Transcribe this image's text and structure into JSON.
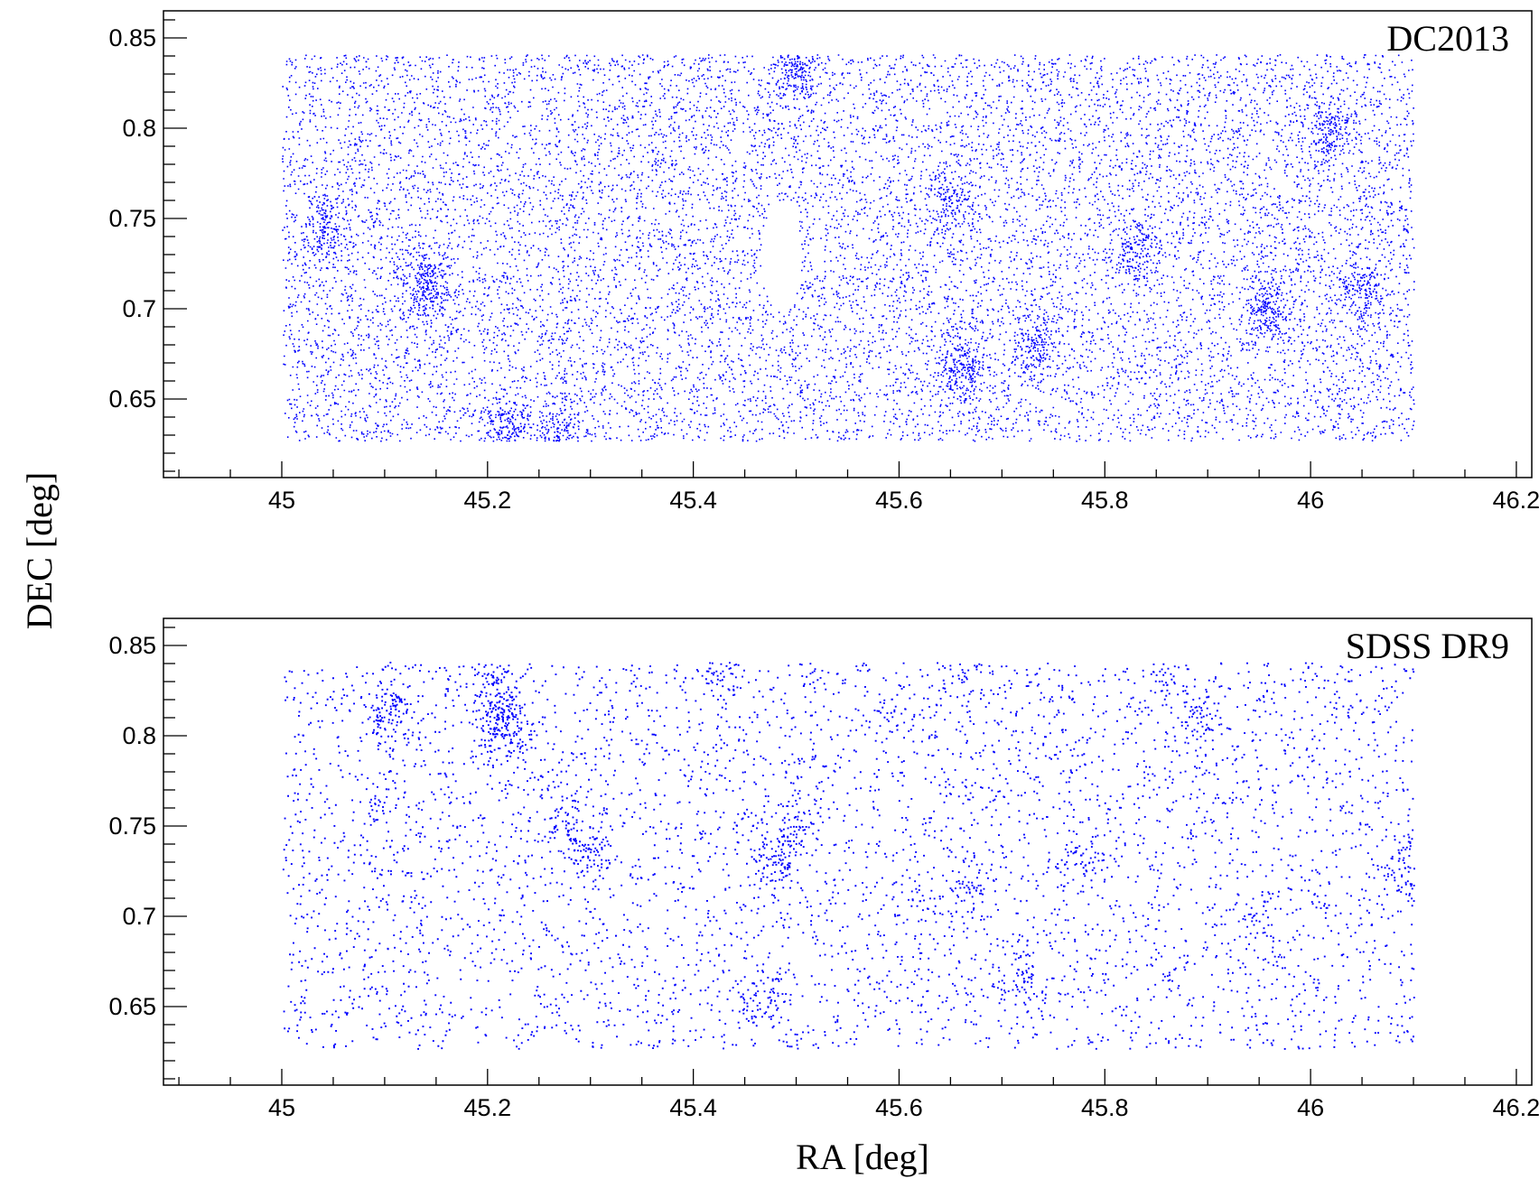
{
  "chart_data": [
    {
      "type": "scatter",
      "title": "DC2013",
      "xlabel": "RA [deg]",
      "ylabel": "DEC [deg]",
      "xlim": [
        44.885,
        46.215
      ],
      "ylim": [
        0.6065,
        0.865
      ],
      "x_ticks": [
        "45",
        "45.2",
        "45.4",
        "45.6",
        "45.8",
        "46",
        "46.2"
      ],
      "y_ticks": [
        "0.65",
        "0.7",
        "0.75",
        "0.8",
        "0.85"
      ],
      "footprint": {
        "ra": [
          45.0,
          46.1
        ],
        "dec": [
          0.627,
          0.841
        ]
      },
      "point_color": "#0000ff",
      "point_count": 14000,
      "density": "dense",
      "clusters": [
        {
          "ra": 45.14,
          "dec": 0.714,
          "weight": 60
        },
        {
          "ra": 45.04,
          "dec": 0.745,
          "weight": 40
        },
        {
          "ra": 45.22,
          "dec": 0.632,
          "weight": 50
        },
        {
          "ra": 45.5,
          "dec": 0.836,
          "weight": 60
        },
        {
          "ra": 45.66,
          "dec": 0.668,
          "weight": 50
        },
        {
          "ra": 45.73,
          "dec": 0.68,
          "weight": 40
        },
        {
          "ra": 45.65,
          "dec": 0.76,
          "weight": 35
        },
        {
          "ra": 46.02,
          "dec": 0.8,
          "weight": 40
        },
        {
          "ra": 45.96,
          "dec": 0.7,
          "weight": 45
        },
        {
          "ra": 46.05,
          "dec": 0.71,
          "weight": 35
        },
        {
          "ra": 45.83,
          "dec": 0.735,
          "weight": 30
        },
        {
          "ra": 45.27,
          "dec": 0.63,
          "weight": 30
        }
      ],
      "voids": [
        {
          "ra": 45.485,
          "dec": 0.73,
          "rx": 0.02,
          "ry": 0.03
        }
      ]
    },
    {
      "type": "scatter",
      "title": "SDSS DR9",
      "xlabel": "RA [deg]",
      "ylabel": "DEC [deg]",
      "xlim": [
        44.885,
        46.215
      ],
      "ylim": [
        0.6065,
        0.865
      ],
      "x_ticks": [
        "45",
        "45.2",
        "45.4",
        "45.6",
        "45.8",
        "46",
        "46.2"
      ],
      "y_ticks": [
        "0.65",
        "0.7",
        "0.75",
        "0.8",
        "0.85"
      ],
      "footprint": {
        "ra": [
          45.0,
          46.1
        ],
        "dec": [
          0.627,
          0.841
        ]
      },
      "point_color": "#0000ff",
      "point_count": 5200,
      "density": "sparse",
      "clusters": [
        {
          "ra": 45.215,
          "dec": 0.808,
          "weight": 90
        },
        {
          "ra": 45.105,
          "dec": 0.815,
          "weight": 45
        },
        {
          "ra": 45.2,
          "dec": 0.836,
          "weight": 30
        },
        {
          "ra": 45.49,
          "dec": 0.742,
          "weight": 45
        },
        {
          "ra": 45.48,
          "dec": 0.727,
          "weight": 25
        },
        {
          "ra": 45.3,
          "dec": 0.736,
          "weight": 40
        },
        {
          "ra": 45.275,
          "dec": 0.756,
          "weight": 20
        },
        {
          "ra": 45.465,
          "dec": 0.655,
          "weight": 30
        },
        {
          "ra": 45.43,
          "dec": 0.836,
          "weight": 25
        },
        {
          "ra": 45.67,
          "dec": 0.712,
          "weight": 25
        },
        {
          "ra": 45.72,
          "dec": 0.666,
          "weight": 25
        },
        {
          "ra": 45.78,
          "dec": 0.733,
          "weight": 20
        },
        {
          "ra": 45.855,
          "dec": 0.836,
          "weight": 20
        },
        {
          "ra": 45.89,
          "dec": 0.812,
          "weight": 25
        },
        {
          "ra": 46.09,
          "dec": 0.727,
          "weight": 25
        },
        {
          "ra": 45.945,
          "dec": 0.698,
          "weight": 15
        },
        {
          "ra": 45.1,
          "dec": 0.765,
          "weight": 15
        },
        {
          "ra": 45.665,
          "dec": 0.837,
          "weight": 15
        }
      ],
      "voids": []
    }
  ]
}
